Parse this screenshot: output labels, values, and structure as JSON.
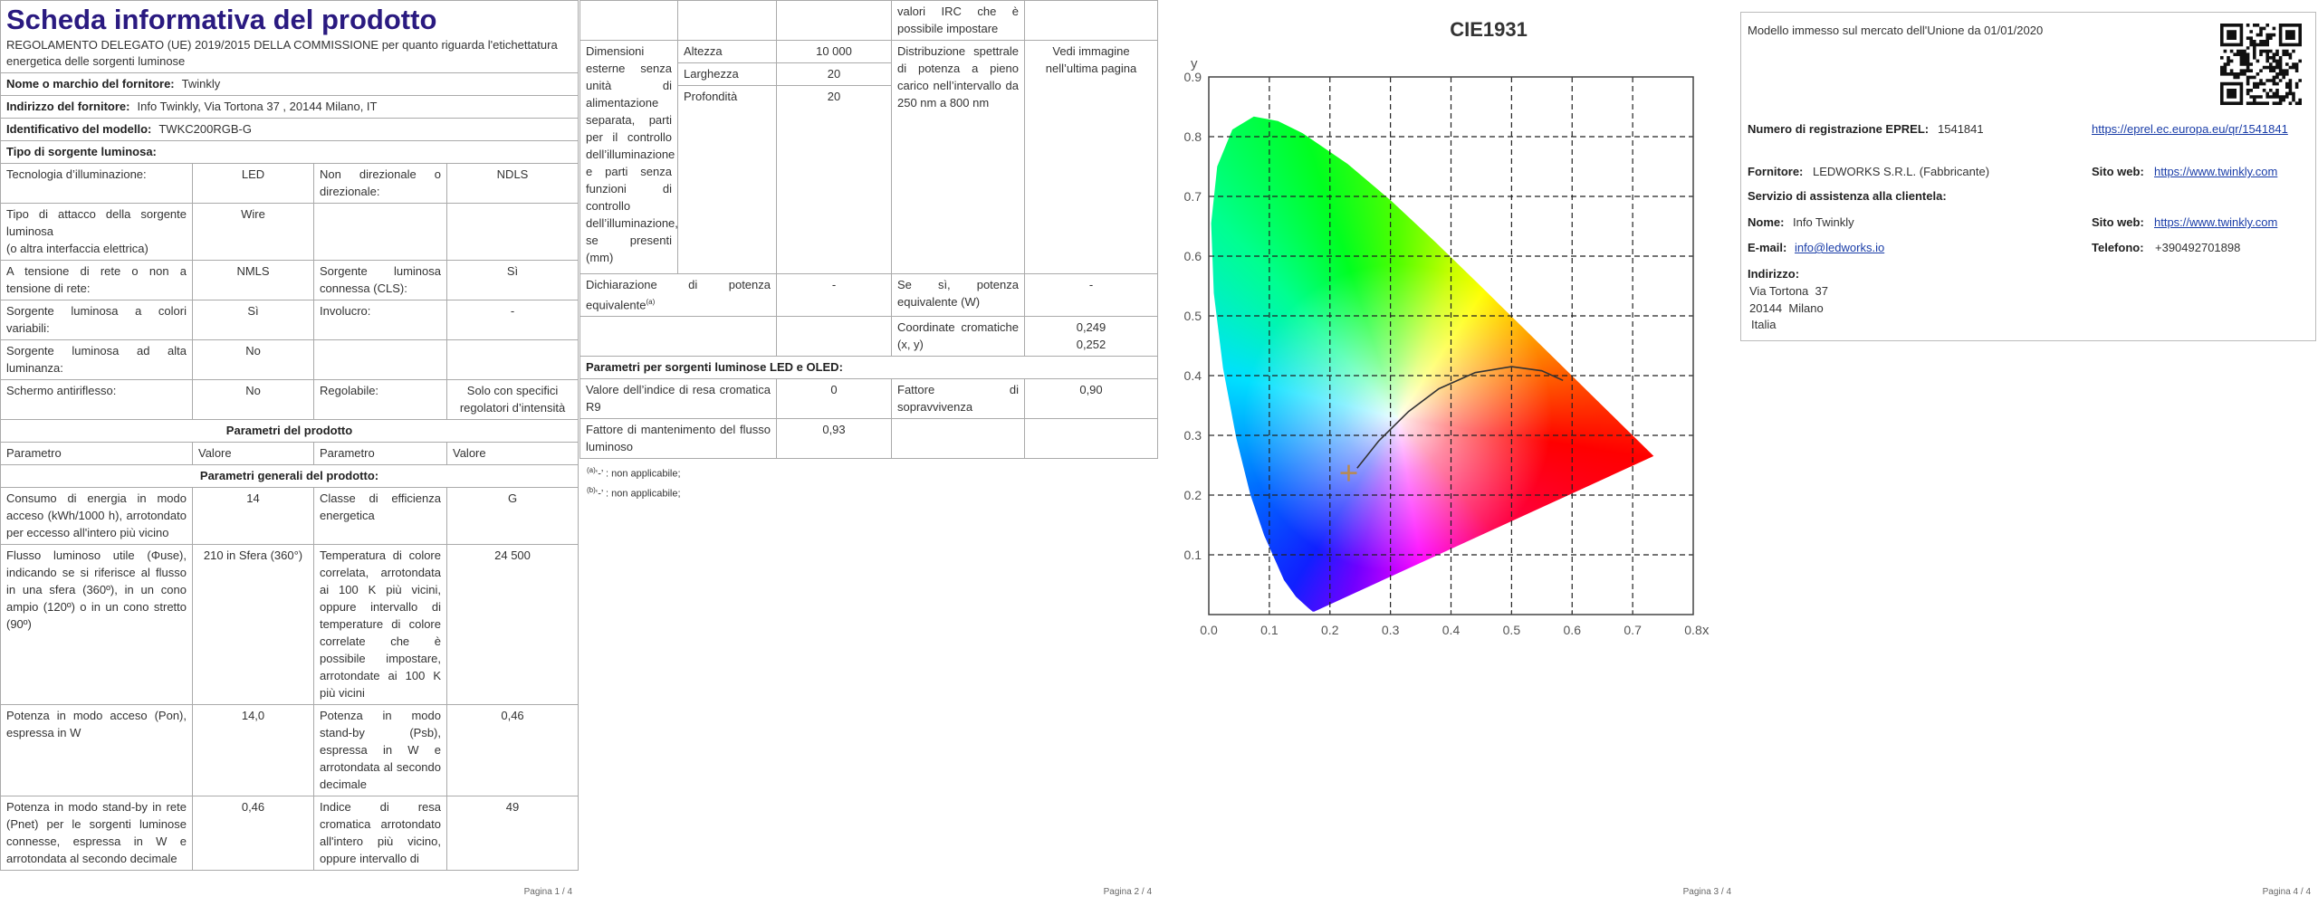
{
  "page1": {
    "header": {
      "title": "Scheda informativa del prodotto",
      "subtitle": "REGOLAMENTO DELEGATO (UE) 2019/2015 DELLA COMMISSIONE per quanto riguarda l'etichettatura energetica delle sorgenti luminose"
    },
    "supplier": [
      {
        "label": "Nome o marchio del fornitore:",
        "value": "Twinkly"
      },
      {
        "label": "Indirizzo del fornitore:",
        "value": "Info Twinkly, Via Tortona 37 , 20144 Milano, IT"
      },
      {
        "label": "Identificativo del modello:",
        "value": "TWKC200RGB-G"
      }
    ],
    "source_heading": "Tipo di sorgente luminosa:",
    "source_rows": [
      [
        "Tecnologia d’illuminazione:",
        "LED",
        "Non direzionale o direzionale:",
        "NDLS"
      ],
      [
        "Tipo di attacco della sorgente luminosa\n(o altra interfaccia elettrica)",
        "Wire",
        null,
        null
      ],
      [
        "A tensione di rete o non a tensione di rete:",
        "NMLS",
        "Sorgente luminosa connessa (CLS):",
        "Sì"
      ],
      [
        "Sorgente luminosa a colori variabili:",
        "Sì",
        "Involucro:",
        "-"
      ],
      [
        "Sorgente luminosa ad alta luminanza:",
        "No",
        null,
        null
      ],
      [
        "Schermo antiriflesso:",
        "No",
        "Regolabile:",
        "Solo con specifici regolatori d’intensità"
      ]
    ],
    "params_heading": "Parametri del prodotto",
    "params_columns": [
      "Parametro",
      "Valore",
      "Parametro",
      "Valore"
    ],
    "general_heading": "Parametri generali del prodotto:",
    "general_rows": [
      [
        "Consumo di energia in modo acceso (kWh/1000 h), arrotondato per eccesso all'intero più vicino",
        "14",
        "Classe di efficienza energetica",
        "G"
      ],
      [
        "Flusso luminoso utile (Φuse), indicando se si riferisce al flusso in una sfera (360º), in un cono ampio (120º) o in un cono stretto (90º)",
        "210 in Sfera (360°)",
        "Temperatura di colore correlata, arrotondata ai 100 K più vicini, oppure intervallo di temperature di colore correlate che è possibile impostare, arrotondate ai 100 K più vicini",
        "24 500"
      ],
      [
        "Potenza in modo acceso (Pon), espressa in W",
        "14,0",
        "Potenza in modo stand-by (Psb), espressa in W e arrotondata al secondo decimale",
        "0,46"
      ],
      [
        "Potenza in modo stand-by in rete (Pnet) per le sorgenti luminose connesse, espressa in W e arrotondata al secondo decimale",
        "0,46",
        "Indice di resa cromatica arrotondato all'intero più vicino, oppure intervallo di",
        "49"
      ]
    ],
    "footer": "Pagina 1 / 4"
  },
  "page2": {
    "continuation": "valori IRC che è possibile impostare",
    "dimensions": {
      "label": "Dimensioni esterne senza unità di alimentazione separata, parti per il controllo dell’illuminazione e parti senza funzioni di controllo dell’illuminazione, se presenti (mm)",
      "parts": [
        {
          "label": "Altezza",
          "value": "10 000"
        },
        {
          "label": "Larghezza",
          "value": "20"
        },
        {
          "label": "Profondità",
          "value": "20"
        }
      ]
    },
    "spectral": {
      "label": "Distribuzione spettrale di potenza a pieno carico nell’intervallo da 250 nm a 800 nm",
      "value": "Vedi immagine nell’ultima pagina"
    },
    "equivalent": {
      "label": "Dichiarazione di potenza equivalente",
      "note": "(a)",
      "value": "-",
      "if_label": "Se sì, potenza equivalente (W)",
      "if_value": "-"
    },
    "chromaticity": {
      "label": "Coordinate cromatiche (x, y)",
      "value": "0,249\n0,252"
    },
    "led_heading": "Parametri per sorgenti luminose LED e OLED:",
    "led_rows": [
      [
        "Valore dell’indice di resa cromatica R9",
        "0",
        "Fattore di sopravvivenza",
        "0,90"
      ],
      [
        "Fattore di mantenimento del flusso luminoso",
        "0,93",
        null,
        null
      ]
    ],
    "notes": [
      {
        "mark": "(a)",
        "text": "‘-’ : non applicabile;"
      },
      {
        "mark": "(b)",
        "text": "‘-’ : non applicabile;"
      }
    ],
    "footer": "Pagina 2 / 4"
  },
  "page3": {
    "title": "CIE1931",
    "xlabel": "x",
    "ylabel": "y",
    "xlim": [
      0,
      0.8
    ],
    "ylim": [
      0,
      0.9
    ],
    "xticks": [
      {
        "value": 0,
        "label": "0.0"
      },
      0.1,
      0.2,
      0.3,
      0.4,
      0.5,
      0.6,
      0.7,
      {
        "value": 0.8,
        "label": "0.8"
      }
    ],
    "yticks": [
      0.1,
      0.2,
      0.3,
      0.4,
      0.5,
      0.6,
      0.7,
      0.8,
      0.9
    ],
    "grid": true,
    "footer": "Pagina 3 / 4"
  },
  "page4": {
    "market": "Modello immesso sul mercato dell'Unione da 01/01/2020",
    "eprel": {
      "label": "Numero di registrazione EPREL:",
      "value": "1541841",
      "link": "https://eprel.ec.europa.eu/qr/1541841"
    },
    "supplier": {
      "label": "Fornitore:",
      "value": "LEDWORKS S.R.L. (Fabbricante)",
      "web_label": "Sito web:",
      "web": "https://www.twinkly.com"
    },
    "service_heading": "Servizio di assistenza alla clientela:",
    "contact": {
      "name_label": "Nome:",
      "name": "Info Twinkly",
      "web_label": "Sito web:",
      "web": "https://www.twinkly.com",
      "email_label": "E-mail:",
      "email": "info@ledworks.io",
      "phone_label": "Telefono:",
      "phone": "+390492701898"
    },
    "address": {
      "label": "Indirizzo:",
      "lines": [
        "Via Tortona  37",
        "20144  Milano",
        "Italia"
      ]
    },
    "footer": "Pagina 4 / 4"
  }
}
